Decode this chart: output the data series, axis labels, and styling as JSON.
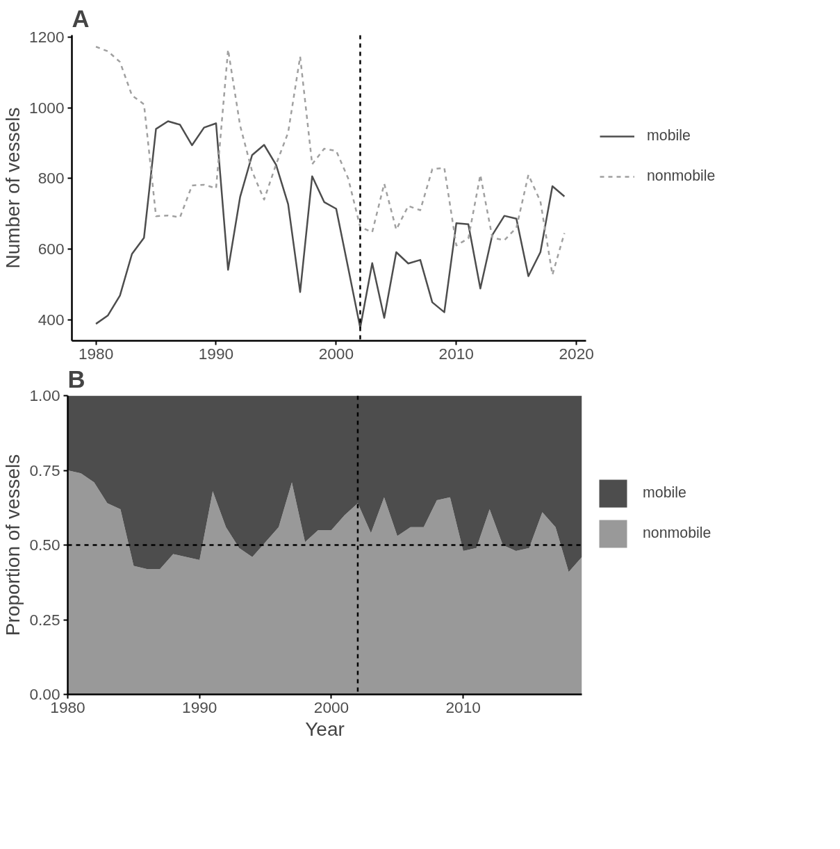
{
  "chart_data": [
    {
      "type": "line",
      "title": "A",
      "ylabel": "Number of vessels",
      "x": [
        1980,
        1981,
        1982,
        1983,
        1984,
        1985,
        1986,
        1987,
        1988,
        1989,
        1990,
        1991,
        1992,
        1993,
        1994,
        1995,
        1996,
        1997,
        1998,
        1999,
        2000,
        2001,
        2002,
        2003,
        2004,
        2005,
        2006,
        2007,
        2008,
        2009,
        2010,
        2011,
        2012,
        2013,
        2014,
        2015,
        2016,
        2017,
        2018,
        2019
      ],
      "series": [
        {
          "name": "mobile",
          "color": "#4d4d4d",
          "line_style": "solid",
          "values": [
            388,
            412,
            468,
            586,
            632,
            940,
            962,
            952,
            894,
            944,
            956,
            541,
            747,
            866,
            895,
            838,
            727,
            478,
            806,
            733,
            714,
            546,
            377,
            560,
            405,
            591,
            559,
            569,
            449,
            421,
            673,
            670,
            488,
            640,
            694,
            686,
            523,
            591,
            778,
            749
          ]
        },
        {
          "name": "nonmobile",
          "color": "#a0a0a0",
          "line_style": "dashed",
          "values": [
            1173,
            1160,
            1130,
            1035,
            1010,
            693,
            695,
            690,
            780,
            782,
            772,
            1165,
            950,
            820,
            740,
            840,
            930,
            1145,
            840,
            884,
            878,
            800,
            662,
            648,
            785,
            655,
            722,
            710,
            826,
            830,
            610,
            630,
            810,
            632,
            625,
            660,
            810,
            735,
            527,
            645
          ]
        }
      ],
      "xlim": [
        1978,
        2020.8
      ],
      "ylim": [
        340,
        1206
      ],
      "xticks": [
        1980,
        1990,
        2000,
        2010,
        2020
      ],
      "yticks": [
        400,
        600,
        800,
        1000,
        1200
      ],
      "ref_lines": [
        {
          "axis": "x",
          "value": 2002,
          "color": "#000000",
          "line_style": "dashed"
        }
      ],
      "legend": "right",
      "grid": false
    },
    {
      "type": "area",
      "title": "B",
      "xlabel": "Year",
      "ylabel": "Proportion of vessels",
      "stacked": true,
      "x": [
        1980,
        1981,
        1982,
        1983,
        1984,
        1985,
        1986,
        1987,
        1988,
        1989,
        1990,
        1991,
        1992,
        1993,
        1994,
        1995,
        1996,
        1997,
        1998,
        1999,
        2000,
        2001,
        2002,
        2003,
        2004,
        2005,
        2006,
        2007,
        2008,
        2009,
        2010,
        2011,
        2012,
        2013,
        2014,
        2015,
        2016,
        2017,
        2018,
        2019
      ],
      "series": [
        {
          "name": "nonmobile",
          "color": "#999999",
          "values": [
            0.75,
            0.74,
            0.71,
            0.64,
            0.62,
            0.43,
            0.42,
            0.42,
            0.47,
            0.46,
            0.45,
            0.68,
            0.56,
            0.49,
            0.46,
            0.51,
            0.56,
            0.71,
            0.51,
            0.55,
            0.55,
            0.6,
            0.64,
            0.54,
            0.66,
            0.53,
            0.56,
            0.56,
            0.65,
            0.66,
            0.48,
            0.49,
            0.62,
            0.5,
            0.48,
            0.49,
            0.61,
            0.56,
            0.41,
            0.46
          ]
        },
        {
          "name": "mobile",
          "color": "#4d4d4d",
          "values": [
            0.25,
            0.26,
            0.29,
            0.36,
            0.38,
            0.57,
            0.58,
            0.58,
            0.53,
            0.54,
            0.55,
            0.32,
            0.44,
            0.51,
            0.54,
            0.49,
            0.44,
            0.29,
            0.49,
            0.45,
            0.45,
            0.4,
            0.36,
            0.46,
            0.34,
            0.47,
            0.44,
            0.44,
            0.35,
            0.34,
            0.52,
            0.51,
            0.38,
            0.5,
            0.52,
            0.51,
            0.39,
            0.44,
            0.59,
            0.54
          ]
        }
      ],
      "xlim": [
        1980,
        2019
      ],
      "ylim": [
        0,
        1
      ],
      "xticks": [
        1980,
        1990,
        2000,
        2010
      ],
      "yticks": [
        {
          "value": 0,
          "label": "0.00"
        },
        {
          "value": 0.25,
          "label": "0.25"
        },
        {
          "value": 0.5,
          "label": "0.50"
        },
        {
          "value": 0.75,
          "label": "0.75"
        },
        {
          "value": 1,
          "label": "1.00"
        }
      ],
      "ref_lines": [
        {
          "axis": "x",
          "value": 2002,
          "color": "#000000",
          "line_style": "dashed"
        },
        {
          "axis": "y",
          "value": 0.5,
          "color": "#000000",
          "line_style": "dashed"
        }
      ],
      "legend": "right",
      "grid": false
    }
  ]
}
